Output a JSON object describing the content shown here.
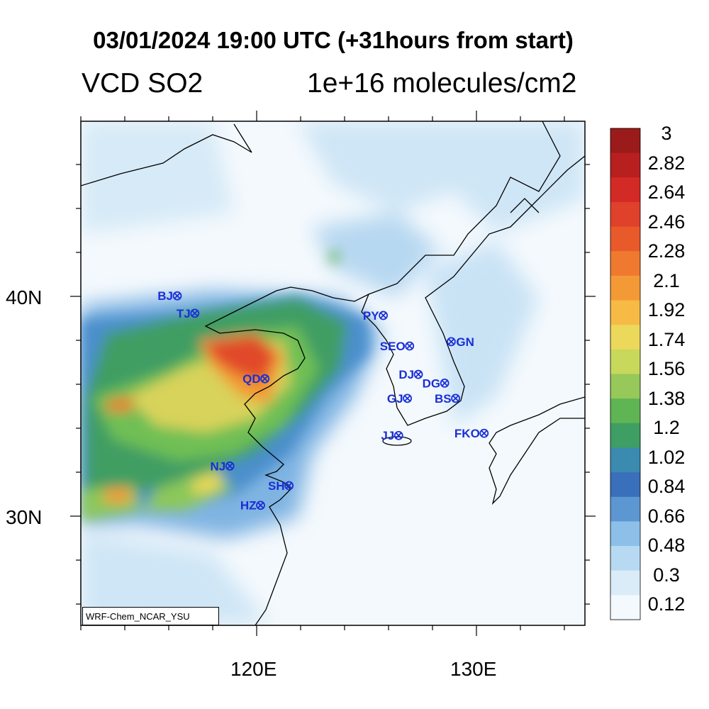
{
  "title": "03/01/2024 19:00 UTC (+31hours from start)",
  "subtitle_left": "VCD SO2",
  "subtitle_right": "1e+16 molecules/cm2",
  "credit": "WRF-Chem_NCAR_YSU",
  "axes": {
    "lat_labels": [
      "40N",
      "30N"
    ],
    "lon_labels": [
      "120E",
      "130E"
    ],
    "lat_range": [
      24.8,
      47.9
    ],
    "lon_range": [
      112.0,
      135.0
    ]
  },
  "colorbar": {
    "labels": [
      "3",
      "2.82",
      "2.64",
      "2.46",
      "2.28",
      "2.1",
      "1.92",
      "1.74",
      "1.56",
      "1.38",
      "1.2",
      "1.02",
      "0.84",
      "0.66",
      "0.48",
      "0.3",
      "0.12"
    ],
    "colors": [
      "#9b1b1b",
      "#b81f1f",
      "#d42a25",
      "#e0412a",
      "#e95a2b",
      "#ef7a2f",
      "#f39a36",
      "#f7bb45",
      "#ecd85a",
      "#c8d85a",
      "#96c85a",
      "#5fb454",
      "#3f9e63",
      "#3b8ab0",
      "#3a6fbb",
      "#5d97d1",
      "#8cc0e8",
      "#b7daf2",
      "#daecf8",
      "#f3f9fd"
    ]
  },
  "cities": [
    {
      "code": "BJ",
      "lon": 116.4,
      "lat": 39.9
    },
    {
      "code": "TJ",
      "lon": 117.2,
      "lat": 39.1
    },
    {
      "code": "QD",
      "lon": 120.4,
      "lat": 36.1
    },
    {
      "code": "PY",
      "lon": 125.8,
      "lat": 39.0
    },
    {
      "code": "SEO",
      "lon": 127.0,
      "lat": 37.6
    },
    {
      "code": "GN",
      "lon": 128.9,
      "lat": 37.8
    },
    {
      "code": "DJ",
      "lon": 127.4,
      "lat": 36.3
    },
    {
      "code": "DG",
      "lon": 128.6,
      "lat": 35.9
    },
    {
      "code": "GJ",
      "lon": 126.9,
      "lat": 35.2
    },
    {
      "code": "BS",
      "lon": 129.1,
      "lat": 35.2
    },
    {
      "code": "JJ",
      "lon": 126.5,
      "lat": 33.5
    },
    {
      "code": "FKO",
      "lon": 130.4,
      "lat": 33.6
    },
    {
      "code": "NJ",
      "lon": 118.8,
      "lat": 32.1
    },
    {
      "code": "SH",
      "lon": 121.5,
      "lat": 31.2
    },
    {
      "code": "HZ",
      "lon": 120.2,
      "lat": 30.3
    }
  ]
}
